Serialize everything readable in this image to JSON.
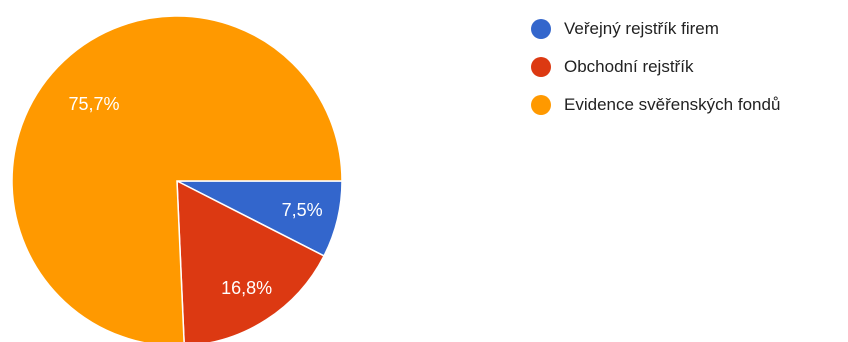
{
  "chart_data": {
    "type": "pie",
    "title": "",
    "legend_position": "top-right",
    "slices": [
      {
        "label": "Veřejný rejstřík firem",
        "value": 7.5,
        "value_label": "7,5%",
        "color": "#3366cc"
      },
      {
        "label": "Obchodní rejstřík",
        "value": 16.8,
        "value_label": "16,8%",
        "color": "#dc3912"
      },
      {
        "label": "Evidence svěřenských fondů",
        "value": 75.7,
        "value_label": "75,7%",
        "color": "#ff9900"
      }
    ]
  }
}
